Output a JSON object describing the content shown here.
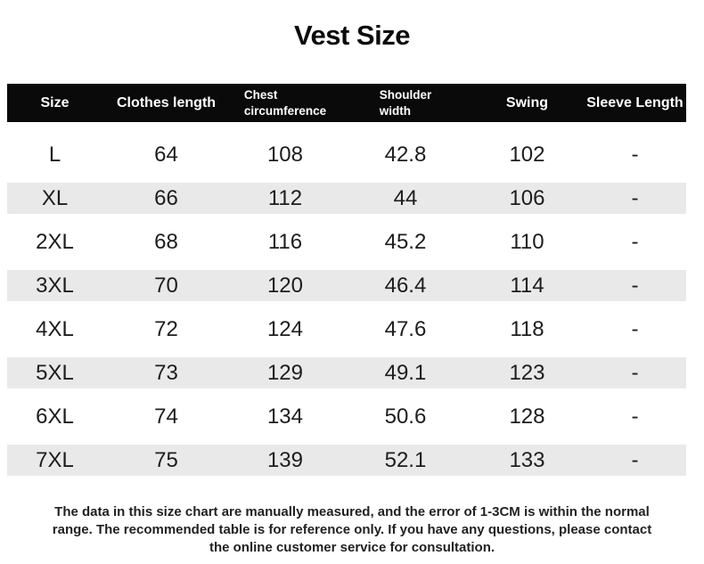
{
  "title": "Vest Size",
  "colors": {
    "header_bg": "#0a0a0a",
    "header_text": "#ffffff",
    "alt_row_bg": "#e9e9e9",
    "body_text": "#1d1d1f",
    "footer_text": "#231f20"
  },
  "table": {
    "columns": [
      {
        "label": "Size"
      },
      {
        "label": "Clothes length"
      },
      {
        "label": "Chest circumference"
      },
      {
        "label": "Shoulder width"
      },
      {
        "label": "Swing"
      },
      {
        "label": "Sleeve Length"
      }
    ],
    "rows": [
      {
        "size": "L",
        "clothes_length": "64",
        "chest_circumference": "108",
        "shoulder_width": "42.8",
        "swing": "102",
        "sleeve_length": "-"
      },
      {
        "size": "XL",
        "clothes_length": "66",
        "chest_circumference": "112",
        "shoulder_width": "44",
        "swing": "106",
        "sleeve_length": "-"
      },
      {
        "size": "2XL",
        "clothes_length": "68",
        "chest_circumference": "116",
        "shoulder_width": "45.2",
        "swing": "110",
        "sleeve_length": "-"
      },
      {
        "size": "3XL",
        "clothes_length": "70",
        "chest_circumference": "120",
        "shoulder_width": "46.4",
        "swing": "114",
        "sleeve_length": "-"
      },
      {
        "size": "4XL",
        "clothes_length": "72",
        "chest_circumference": "124",
        "shoulder_width": "47.6",
        "swing": "118",
        "sleeve_length": "-"
      },
      {
        "size": "5XL",
        "clothes_length": "73",
        "chest_circumference": "129",
        "shoulder_width": "49.1",
        "swing": "123",
        "sleeve_length": "-"
      },
      {
        "size": "6XL",
        "clothes_length": "74",
        "chest_circumference": "134",
        "shoulder_width": "50.6",
        "swing": "128",
        "sleeve_length": "-"
      },
      {
        "size": "7XL",
        "clothes_length": "75",
        "chest_circumference": "139",
        "shoulder_width": "52.1",
        "swing": "133",
        "sleeve_length": "-"
      }
    ]
  },
  "footer": {
    "lines": [
      "The data in this size chart are manually measured, and the error of 1-3CM is within the normal",
      "range. The recommended table is for reference only. If you have any questions, please contact",
      "the online customer service for consultation."
    ]
  }
}
